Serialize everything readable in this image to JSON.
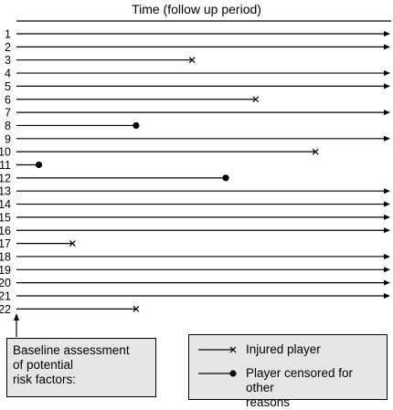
{
  "title": "Time (follow up period)",
  "players": [
    {
      "id": "1",
      "end": 1.0,
      "outcome": "none"
    },
    {
      "id": "2",
      "end": 1.0,
      "outcome": "none"
    },
    {
      "id": "3",
      "end": 0.47,
      "outcome": "injured"
    },
    {
      "id": "4",
      "end": 1.0,
      "outcome": "none"
    },
    {
      "id": "5",
      "end": 1.0,
      "outcome": "none"
    },
    {
      "id": "6",
      "end": 0.64,
      "outcome": "injured"
    },
    {
      "id": "7",
      "end": 1.0,
      "outcome": "none"
    },
    {
      "id": "8",
      "end": 0.32,
      "outcome": "censored"
    },
    {
      "id": "9",
      "end": 1.0,
      "outcome": "none"
    },
    {
      "id": "10",
      "end": 0.8,
      "outcome": "injured"
    },
    {
      "id": "11",
      "end": 0.06,
      "outcome": "censored"
    },
    {
      "id": "12",
      "end": 0.56,
      "outcome": "censored"
    },
    {
      "id": "13",
      "end": 1.0,
      "outcome": "none"
    },
    {
      "id": "14",
      "end": 1.0,
      "outcome": "none"
    },
    {
      "id": "15",
      "end": 1.0,
      "outcome": "none"
    },
    {
      "id": "16",
      "end": 1.0,
      "outcome": "none"
    },
    {
      "id": "17",
      "end": 0.15,
      "outcome": "injured"
    },
    {
      "id": "18",
      "end": 1.0,
      "outcome": "none"
    },
    {
      "id": "19",
      "end": 1.0,
      "outcome": "none"
    },
    {
      "id": "20",
      "end": 1.0,
      "outcome": "none"
    },
    {
      "id": "21",
      "end": 1.0,
      "outcome": "none"
    },
    {
      "id": "22",
      "end": 0.32,
      "outcome": "injured"
    }
  ],
  "baseline": {
    "line1": "Baseline assessment",
    "line2": "of potential",
    "line3": "risk factors:"
  },
  "legend": {
    "injured_label": "Injured player",
    "censored_label_line1": "Player censored for other",
    "censored_label_line2": "reasons"
  }
}
